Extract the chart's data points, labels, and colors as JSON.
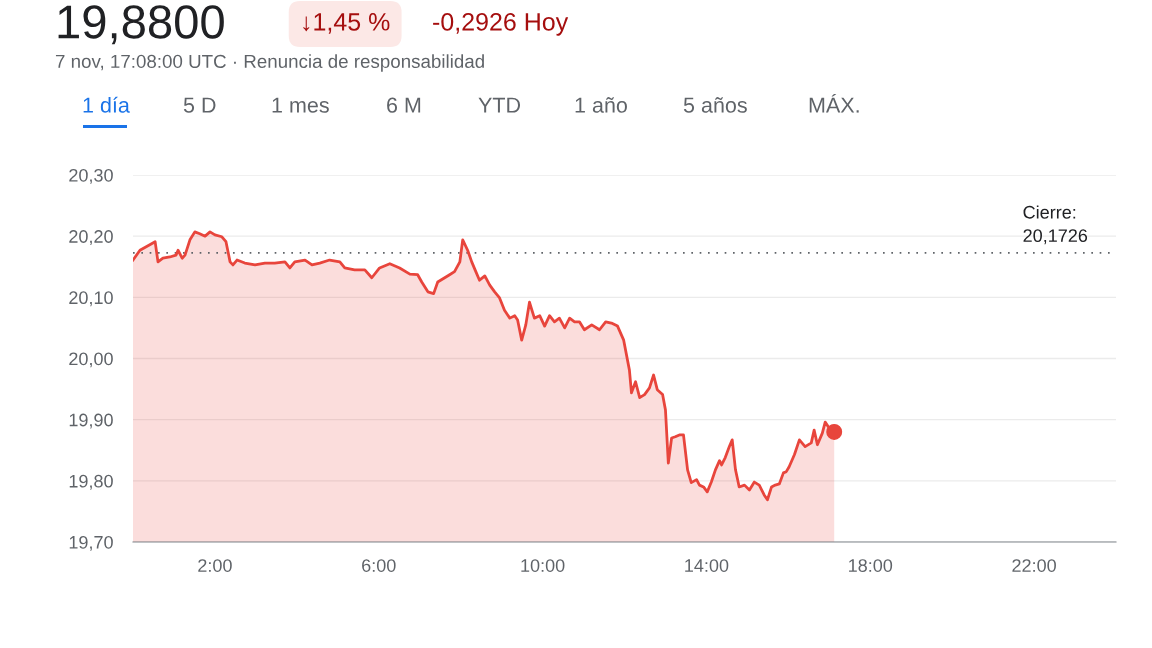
{
  "chart_data": {
    "type": "area",
    "title": "19,8800",
    "annotations": [
      "↓1,45 %",
      "-0,2926 Hoy",
      "7 nov, 17:08:00 UTC · Renuncia de responsabilidad",
      "1 día",
      "5 D",
      "1 mes",
      "6 M",
      "YTD",
      "1 año",
      "5 años",
      "MÁX."
    ],
    "series": [
      {
        "color": "#e8453c",
        "x": [
          0.0,
          0.17,
          0.41,
          0.54,
          0.61,
          0.73,
          0.9,
          1.05,
          1.1,
          1.2,
          1.27,
          1.39,
          1.51,
          1.63,
          1.76,
          1.88,
          2.0,
          2.17,
          2.27,
          2.37,
          2.44,
          2.54,
          2.73,
          2.98,
          3.22,
          3.46,
          3.71,
          3.83,
          3.95,
          4.2,
          4.37,
          4.56,
          4.8,
          5.05,
          5.17,
          5.41,
          5.66,
          5.83,
          6.02,
          6.27,
          6.51,
          6.76,
          6.95,
          7.05,
          7.2,
          7.34,
          7.44,
          7.61,
          7.73,
          7.85,
          7.98,
          8.05,
          8.17,
          8.27,
          8.37,
          8.46,
          8.59,
          8.71,
          8.83,
          8.95,
          9.07,
          9.2,
          9.32,
          9.39,
          9.49,
          9.59,
          9.68,
          9.8,
          9.93,
          10.05,
          10.17,
          10.29,
          10.41,
          10.54,
          10.66,
          10.78,
          10.9,
          11.02,
          11.2,
          11.39,
          11.54,
          11.68,
          11.83,
          11.98,
          12.12,
          12.17,
          12.27,
          12.37,
          12.49,
          12.61,
          12.71,
          12.8,
          12.93,
          13.0,
          13.07,
          13.15,
          13.24,
          13.34,
          13.44,
          13.54,
          13.63,
          13.76,
          13.83,
          13.93,
          14.02,
          14.12,
          14.22,
          14.32,
          14.37,
          14.46,
          14.56,
          14.63,
          14.71,
          14.8,
          14.93,
          15.05,
          15.17,
          15.29,
          15.41,
          15.49,
          15.59,
          15.68,
          15.78,
          15.88,
          15.95,
          16.02,
          16.15,
          16.27,
          16.41,
          16.56,
          16.63,
          16.71,
          16.83,
          16.9,
          16.98,
          17.12
        ],
        "values": [
          20.161,
          20.177,
          20.186,
          20.191,
          20.158,
          20.164,
          20.166,
          20.169,
          20.177,
          20.164,
          20.169,
          20.194,
          20.207,
          20.204,
          20.2,
          20.207,
          20.202,
          20.199,
          20.191,
          20.158,
          20.153,
          20.161,
          20.156,
          20.153,
          20.156,
          20.156,
          20.158,
          20.148,
          20.158,
          20.161,
          20.153,
          20.156,
          20.161,
          20.158,
          20.148,
          20.145,
          20.145,
          20.132,
          20.148,
          20.155,
          20.148,
          20.138,
          20.137,
          20.125,
          20.109,
          20.106,
          20.125,
          20.132,
          20.137,
          20.142,
          20.158,
          20.194,
          20.177,
          20.158,
          20.142,
          20.128,
          20.135,
          20.12,
          20.109,
          20.099,
          20.079,
          20.066,
          20.07,
          20.063,
          20.03,
          20.055,
          20.092,
          20.066,
          20.07,
          20.053,
          20.07,
          20.06,
          20.066,
          20.05,
          20.066,
          20.06,
          20.06,
          20.047,
          20.055,
          20.047,
          20.06,
          20.058,
          20.053,
          20.03,
          19.981,
          19.944,
          19.962,
          19.936,
          19.941,
          19.952,
          19.973,
          19.949,
          19.941,
          19.916,
          19.829,
          19.87,
          19.872,
          19.875,
          19.875,
          19.818,
          19.797,
          19.802,
          19.793,
          19.79,
          19.782,
          19.798,
          19.818,
          19.833,
          19.826,
          19.838,
          19.856,
          19.867,
          19.818,
          19.79,
          19.793,
          19.785,
          19.798,
          19.793,
          19.777,
          19.769,
          19.79,
          19.793,
          19.795,
          19.813,
          19.815,
          19.823,
          19.843,
          19.867,
          19.856,
          19.862,
          19.883,
          19.859,
          19.878,
          19.896,
          19.888,
          19.88
        ]
      },
      {
        "type": "scatter",
        "color": "#e8453c",
        "x": [
          17.12
        ],
        "values": [
          19.88
        ]
      }
    ],
    "ref_lines": [
      {
        "axis": "y",
        "value": 20.1726,
        "label": "Cierre:\n20,1726",
        "color": "#5f6368",
        "line_style": "dotted"
      }
    ],
    "xlim": [
      0,
      24
    ],
    "xticks": [
      {
        "value": 2,
        "label": "2:00"
      },
      {
        "value": 6,
        "label": "6:00"
      },
      {
        "value": 10,
        "label": "10:00"
      },
      {
        "value": 14,
        "label": "14:00"
      },
      {
        "value": 18,
        "label": "18:00"
      },
      {
        "value": 22,
        "label": "22:00"
      }
    ],
    "ylim": [
      19.7,
      20.3
    ],
    "yticks": [
      {
        "value": 19.7,
        "label": "19,70"
      },
      {
        "value": 19.8,
        "label": "19,80"
      },
      {
        "value": 19.9,
        "label": "19,90"
      },
      {
        "value": 20.0,
        "label": "20,00"
      },
      {
        "value": 20.1,
        "label": "20,10"
      },
      {
        "value": 20.2,
        "label": "20,20"
      },
      {
        "value": 20.3,
        "label": "20,30"
      }
    ],
    "grid": "y",
    "legend": false
  }
}
